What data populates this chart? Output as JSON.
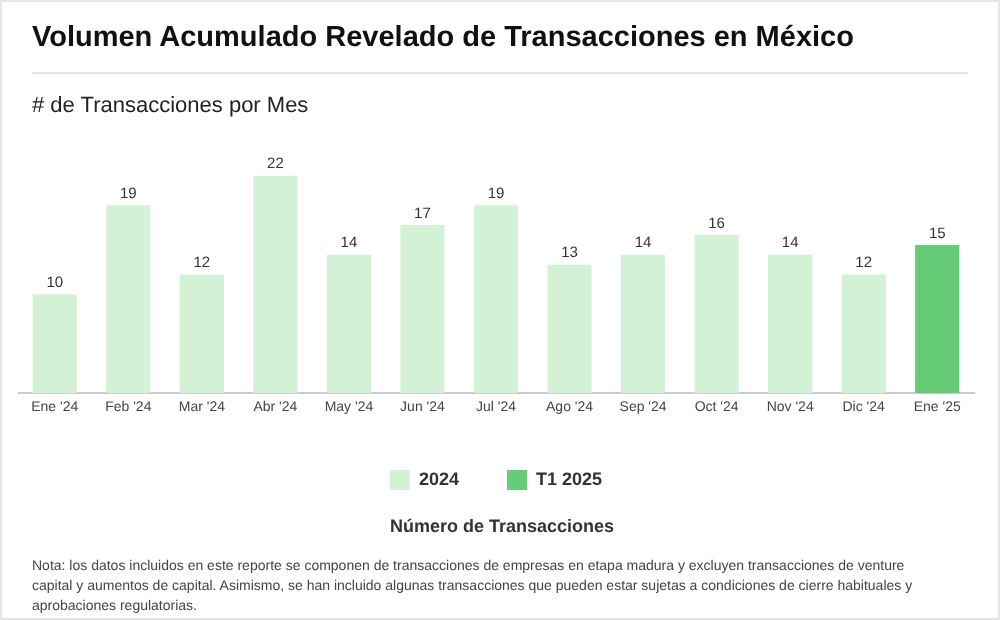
{
  "chart_data": {
    "type": "bar",
    "title": "Volumen Acumulado Revelado de Transacciones en México",
    "subtitle": "# de Transacciones por Mes",
    "legend_title": "Número de Transacciones",
    "categories": [
      "Ene '24",
      "Feb '24",
      "Mar '24",
      "Abr '24",
      "May '24",
      "Jun '24",
      "Jul '24",
      "Ago '24",
      "Sep '24",
      "Oct '24",
      "Nov '24",
      "Dic '24",
      "Ene '25"
    ],
    "series": [
      {
        "name": "2024",
        "color": "#d3f2d5",
        "values": [
          10,
          19,
          12,
          22,
          14,
          17,
          19,
          13,
          14,
          16,
          14,
          12,
          null
        ]
      },
      {
        "name": "T1 2025",
        "color": "#66cc77",
        "values": [
          null,
          null,
          null,
          null,
          null,
          null,
          null,
          null,
          null,
          null,
          null,
          null,
          15
        ]
      }
    ],
    "data_labels": true,
    "grid": false,
    "legend": "bottom",
    "annotations": [
      "Nota: los datos incluidos en este reporte se componen de transacciones de empresas en etapa madura y excluyen transacciones de venture capital y aumentos de capital. Asimismo, se han incluido algunas transacciones que pueden estar sujetas a condiciones de cierre habituales y aprobaciones regulatorias."
    ]
  }
}
